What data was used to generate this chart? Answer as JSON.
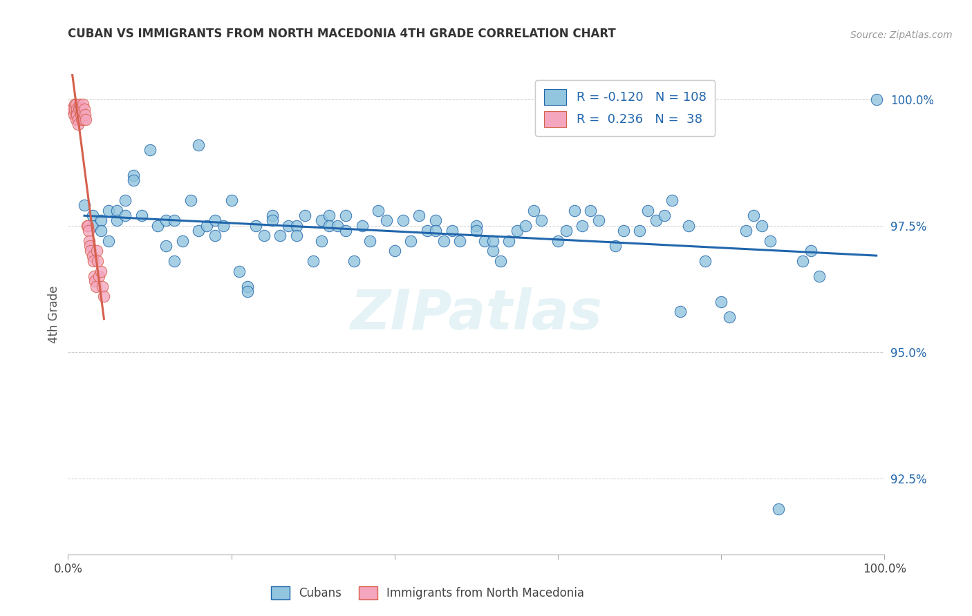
{
  "title": "CUBAN VS IMMIGRANTS FROM NORTH MACEDONIA 4TH GRADE CORRELATION CHART",
  "source": "Source: ZipAtlas.com",
  "ylabel": "4th Grade",
  "xlim": [
    0.0,
    1.0
  ],
  "ylim": [
    0.91,
    1.005
  ],
  "x_ticks": [
    0.0,
    0.2,
    0.4,
    0.6,
    0.8,
    1.0
  ],
  "x_tick_labels": [
    "0.0%",
    "",
    "",
    "",
    "",
    "100.0%"
  ],
  "y_tick_labels_right": [
    "92.5%",
    "95.0%",
    "97.5%",
    "100.0%"
  ],
  "y_ticks_right": [
    0.925,
    0.95,
    0.975,
    1.0
  ],
  "legend_label1": "Cubans",
  "legend_label2": "Immigrants from North Macedonia",
  "R1": "-0.120",
  "N1": "108",
  "R2": "0.236",
  "N2": "38",
  "color_blue": "#92c5de",
  "color_pink": "#f4a6be",
  "trendline_blue": "#2166ac",
  "trendline_pink": "#d6604d",
  "watermark": "ZIPatlas",
  "blue_points_x": [
    0.02,
    0.03,
    0.03,
    0.04,
    0.04,
    0.05,
    0.05,
    0.06,
    0.06,
    0.07,
    0.07,
    0.08,
    0.08,
    0.09,
    0.1,
    0.11,
    0.12,
    0.12,
    0.13,
    0.13,
    0.14,
    0.15,
    0.16,
    0.16,
    0.17,
    0.18,
    0.18,
    0.19,
    0.2,
    0.21,
    0.22,
    0.22,
    0.23,
    0.24,
    0.25,
    0.25,
    0.26,
    0.27,
    0.28,
    0.28,
    0.29,
    0.3,
    0.31,
    0.31,
    0.32,
    0.32,
    0.33,
    0.34,
    0.34,
    0.35,
    0.36,
    0.37,
    0.38,
    0.39,
    0.4,
    0.41,
    0.42,
    0.43,
    0.44,
    0.45,
    0.45,
    0.46,
    0.47,
    0.48,
    0.5,
    0.5,
    0.51,
    0.52,
    0.52,
    0.53,
    0.54,
    0.55,
    0.56,
    0.57,
    0.58,
    0.6,
    0.61,
    0.62,
    0.63,
    0.64,
    0.65,
    0.67,
    0.68,
    0.7,
    0.71,
    0.72,
    0.73,
    0.74,
    0.75,
    0.76,
    0.78,
    0.8,
    0.81,
    0.83,
    0.84,
    0.85,
    0.86,
    0.87,
    0.9,
    0.91,
    0.92,
    0.99
  ],
  "blue_points_y": [
    0.979,
    0.977,
    0.975,
    0.976,
    0.974,
    0.978,
    0.972,
    0.978,
    0.976,
    0.98,
    0.977,
    0.985,
    0.984,
    0.977,
    0.99,
    0.975,
    0.976,
    0.971,
    0.976,
    0.968,
    0.972,
    0.98,
    0.991,
    0.974,
    0.975,
    0.976,
    0.973,
    0.975,
    0.98,
    0.966,
    0.963,
    0.962,
    0.975,
    0.973,
    0.977,
    0.976,
    0.973,
    0.975,
    0.975,
    0.973,
    0.977,
    0.968,
    0.972,
    0.976,
    0.977,
    0.975,
    0.975,
    0.977,
    0.974,
    0.968,
    0.975,
    0.972,
    0.978,
    0.976,
    0.97,
    0.976,
    0.972,
    0.977,
    0.974,
    0.976,
    0.974,
    0.972,
    0.974,
    0.972,
    0.975,
    0.974,
    0.972,
    0.97,
    0.972,
    0.968,
    0.972,
    0.974,
    0.975,
    0.978,
    0.976,
    0.972,
    0.974,
    0.978,
    0.975,
    0.978,
    0.976,
    0.971,
    0.974,
    0.974,
    0.978,
    0.976,
    0.977,
    0.98,
    0.958,
    0.975,
    0.968,
    0.96,
    0.957,
    0.974,
    0.977,
    0.975,
    0.972,
    0.919,
    0.968,
    0.97,
    0.965,
    1.0
  ],
  "pink_points_x": [
    0.005,
    0.007,
    0.008,
    0.008,
    0.01,
    0.01,
    0.01,
    0.011,
    0.011,
    0.012,
    0.012,
    0.013,
    0.014,
    0.015,
    0.016,
    0.017,
    0.018,
    0.019,
    0.02,
    0.021,
    0.022,
    0.023,
    0.024,
    0.025,
    0.026,
    0.027,
    0.028,
    0.03,
    0.031,
    0.032,
    0.033,
    0.034,
    0.035,
    0.036,
    0.038,
    0.04,
    0.042,
    0.044
  ],
  "pink_points_y": [
    0.998,
    0.997,
    0.999,
    0.998,
    0.997,
    0.996,
    0.999,
    0.998,
    0.997,
    0.996,
    0.995,
    0.998,
    0.999,
    0.998,
    0.997,
    0.996,
    0.999,
    0.996,
    0.998,
    0.997,
    0.996,
    0.975,
    0.975,
    0.974,
    0.972,
    0.971,
    0.97,
    0.969,
    0.968,
    0.965,
    0.964,
    0.963,
    0.97,
    0.968,
    0.965,
    0.966,
    0.963,
    0.961
  ]
}
